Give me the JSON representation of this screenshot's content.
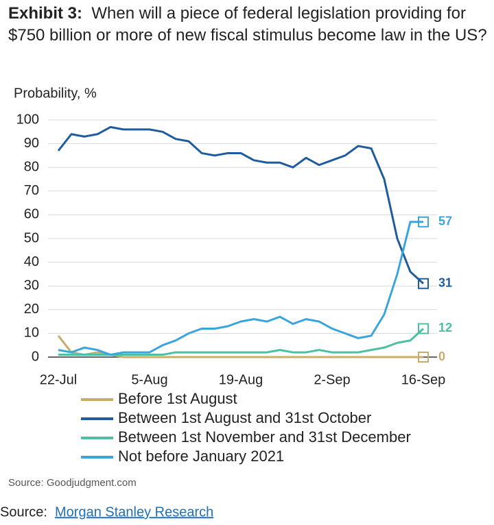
{
  "chart_data": {
    "type": "line",
    "title_label": "Exhibit 3:",
    "title": "When will a piece of federal legislation providing for $750 billion or more of new fiscal stimulus become law in the US?",
    "y_label": "Probability, %",
    "categories": [
      "22-Jul",
      null,
      null,
      null,
      null,
      null,
      null,
      "5-Aug",
      null,
      null,
      null,
      null,
      null,
      null,
      "19-Aug",
      null,
      null,
      null,
      null,
      null,
      null,
      "2-Sep",
      null,
      null,
      null,
      null,
      null,
      null,
      "16-Sep"
    ],
    "series": [
      {
        "name": "Before 1st August",
        "color": "#c9ab6c",
        "values": [
          9,
          2,
          1,
          2,
          1,
          0,
          0,
          0,
          0,
          0,
          0,
          0,
          0,
          0,
          0,
          0,
          0,
          0,
          0,
          0,
          0,
          0,
          0,
          0,
          0,
          0,
          0,
          0,
          0
        ]
      },
      {
        "name": "Between 1st August and 31st October",
        "color": "#1f5c9e",
        "values": [
          87,
          94,
          93,
          94,
          97,
          96,
          96,
          96,
          95,
          92,
          91,
          86,
          85,
          86,
          86,
          83,
          82,
          82,
          80,
          84,
          81,
          83,
          85,
          89,
          88,
          75,
          50,
          36,
          31
        ]
      },
      {
        "name": "Between 1st November and 31st December",
        "color": "#4cbfa4",
        "values": [
          1,
          1,
          1,
          1,
          1,
          1,
          1,
          1,
          1,
          2,
          2,
          2,
          2,
          2,
          2,
          2,
          2,
          3,
          2,
          2,
          3,
          2,
          2,
          2,
          3,
          4,
          6,
          7,
          12
        ]
      },
      {
        "name": "Not before January 2021",
        "color": "#3aa5dc",
        "values": [
          3,
          2,
          4,
          3,
          1,
          2,
          2,
          2,
          5,
          7,
          10,
          12,
          12,
          13,
          15,
          16,
          15,
          17,
          14,
          16,
          15,
          12,
          10,
          8,
          9,
          18,
          35,
          57,
          57
        ]
      }
    ],
    "ylim": [
      0,
      100
    ],
    "yticks": [
      0,
      10,
      20,
      30,
      40,
      50,
      60,
      70,
      80,
      90,
      100
    ],
    "grid": true,
    "sources": [
      "Source: Goodjudgment.com",
      "Morgan Stanley Research"
    ],
    "source_prefix": "Source:"
  }
}
